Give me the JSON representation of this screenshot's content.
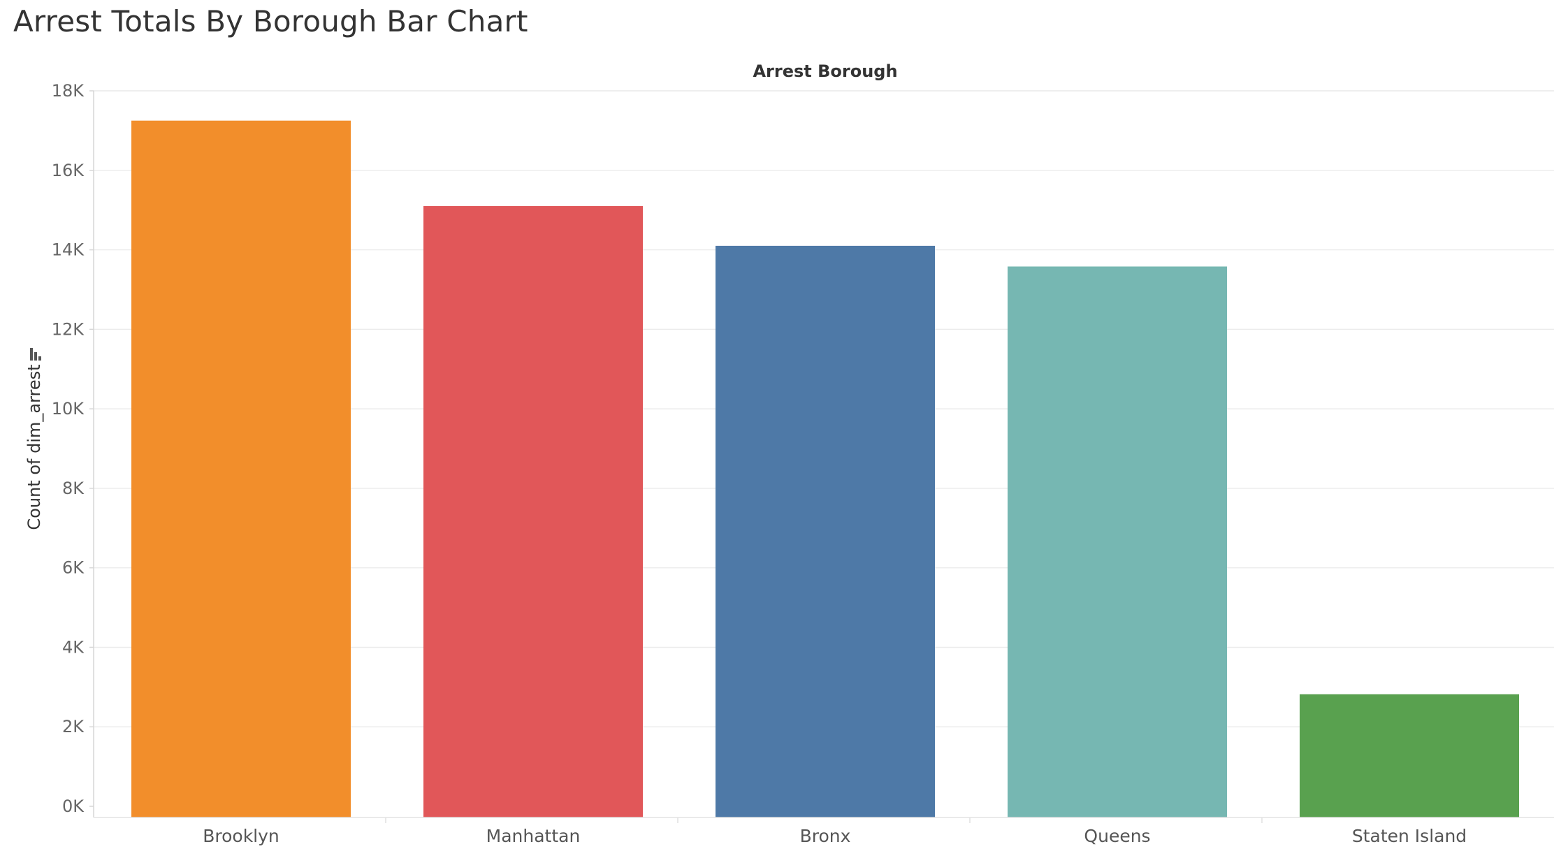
{
  "page": {
    "title": "Arrest Totals By Borough Bar Chart"
  },
  "chart_data": {
    "type": "bar",
    "title": "Arrest Totals By Borough Bar Chart",
    "column_header": "Arrest Borough",
    "xlabel": "",
    "ylabel": "Count of dim_arrest",
    "categories": [
      "Brooklyn",
      "Manhattan",
      "Bronx",
      "Queens",
      "Staten Island"
    ],
    "values": [
      17250,
      15100,
      14100,
      13580,
      2820
    ],
    "colors": [
      "#f28e2b",
      "#e15759",
      "#4e79a7",
      "#76b7b2",
      "#59a14f"
    ],
    "ylim": [
      0,
      18000
    ],
    "y_ticks": [
      0,
      2000,
      4000,
      6000,
      8000,
      10000,
      12000,
      14000,
      16000,
      18000
    ],
    "y_tick_labels": [
      "0K",
      "2K",
      "4K",
      "6K",
      "8K",
      "10K",
      "12K",
      "14K",
      "16K",
      "18K"
    ],
    "grid": true,
    "legend": "none",
    "sort_icon": "sort-descending-icon"
  }
}
